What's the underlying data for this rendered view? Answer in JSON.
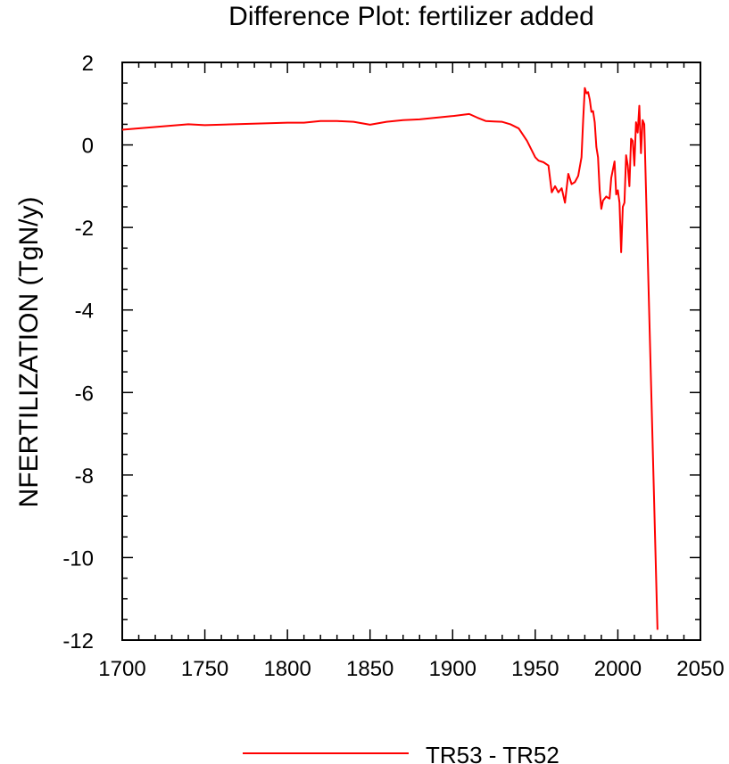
{
  "chart_data": {
    "type": "line",
    "title": "Difference Plot: fertilizer added",
    "xlabel": "",
    "ylabel": "NFERTILIZATION  (TgN/y)",
    "xlim": [
      1700,
      2050
    ],
    "ylim": [
      -12,
      2
    ],
    "xticks": [
      1700,
      1750,
      1800,
      1850,
      1900,
      1950,
      2000,
      2050
    ],
    "yticks": [
      -12,
      -10,
      -8,
      -6,
      -4,
      -2,
      0,
      2
    ],
    "grid": false,
    "legend_position": "bottom-center",
    "series": [
      {
        "name": "TR53 - TR52",
        "color": "#ff0000",
        "x": [
          1700,
          1740,
          1750,
          1800,
          1810,
          1820,
          1830,
          1840,
          1850,
          1860,
          1870,
          1880,
          1890,
          1900,
          1910,
          1915,
          1920,
          1925,
          1930,
          1935,
          1940,
          1945,
          1950,
          1952,
          1955,
          1958,
          1960,
          1962,
          1964,
          1966,
          1968,
          1970,
          1972,
          1974,
          1976,
          1978,
          1979,
          1980,
          1981,
          1982,
          1983,
          1984,
          1985,
          1986,
          1987,
          1988,
          1989,
          1990,
          1991,
          1992,
          1993,
          1994,
          1995,
          1996,
          1997,
          1998,
          1999,
          2000,
          2001,
          2002,
          2003,
          2004,
          2005,
          2006,
          2007,
          2008,
          2009,
          2010,
          2011,
          2012,
          2013,
          2014,
          2015,
          2016,
          2024
        ],
        "y": [
          0.37,
          0.5,
          0.48,
          0.54,
          0.54,
          0.58,
          0.58,
          0.56,
          0.49,
          0.56,
          0.6,
          0.62,
          0.66,
          0.7,
          0.75,
          0.66,
          0.58,
          0.57,
          0.56,
          0.5,
          0.4,
          0.1,
          -0.3,
          -0.38,
          -0.42,
          -0.5,
          -1.15,
          -1.0,
          -1.15,
          -1.05,
          -1.4,
          -0.7,
          -0.95,
          -0.9,
          -0.75,
          -0.3,
          0.6,
          1.38,
          1.25,
          1.28,
          1.1,
          0.8,
          0.82,
          0.55,
          -0.05,
          -0.3,
          -1.1,
          -1.55,
          -1.35,
          -1.3,
          -1.25,
          -1.28,
          -1.3,
          -0.8,
          -0.6,
          -0.4,
          -1.2,
          -1.1,
          -1.4,
          -2.6,
          -1.5,
          -1.4,
          -0.25,
          -0.5,
          -1.0,
          0.15,
          0.1,
          -0.5,
          0.55,
          0.3,
          0.95,
          -0.2,
          0.6,
          0.5,
          -11.75
        ]
      }
    ]
  }
}
